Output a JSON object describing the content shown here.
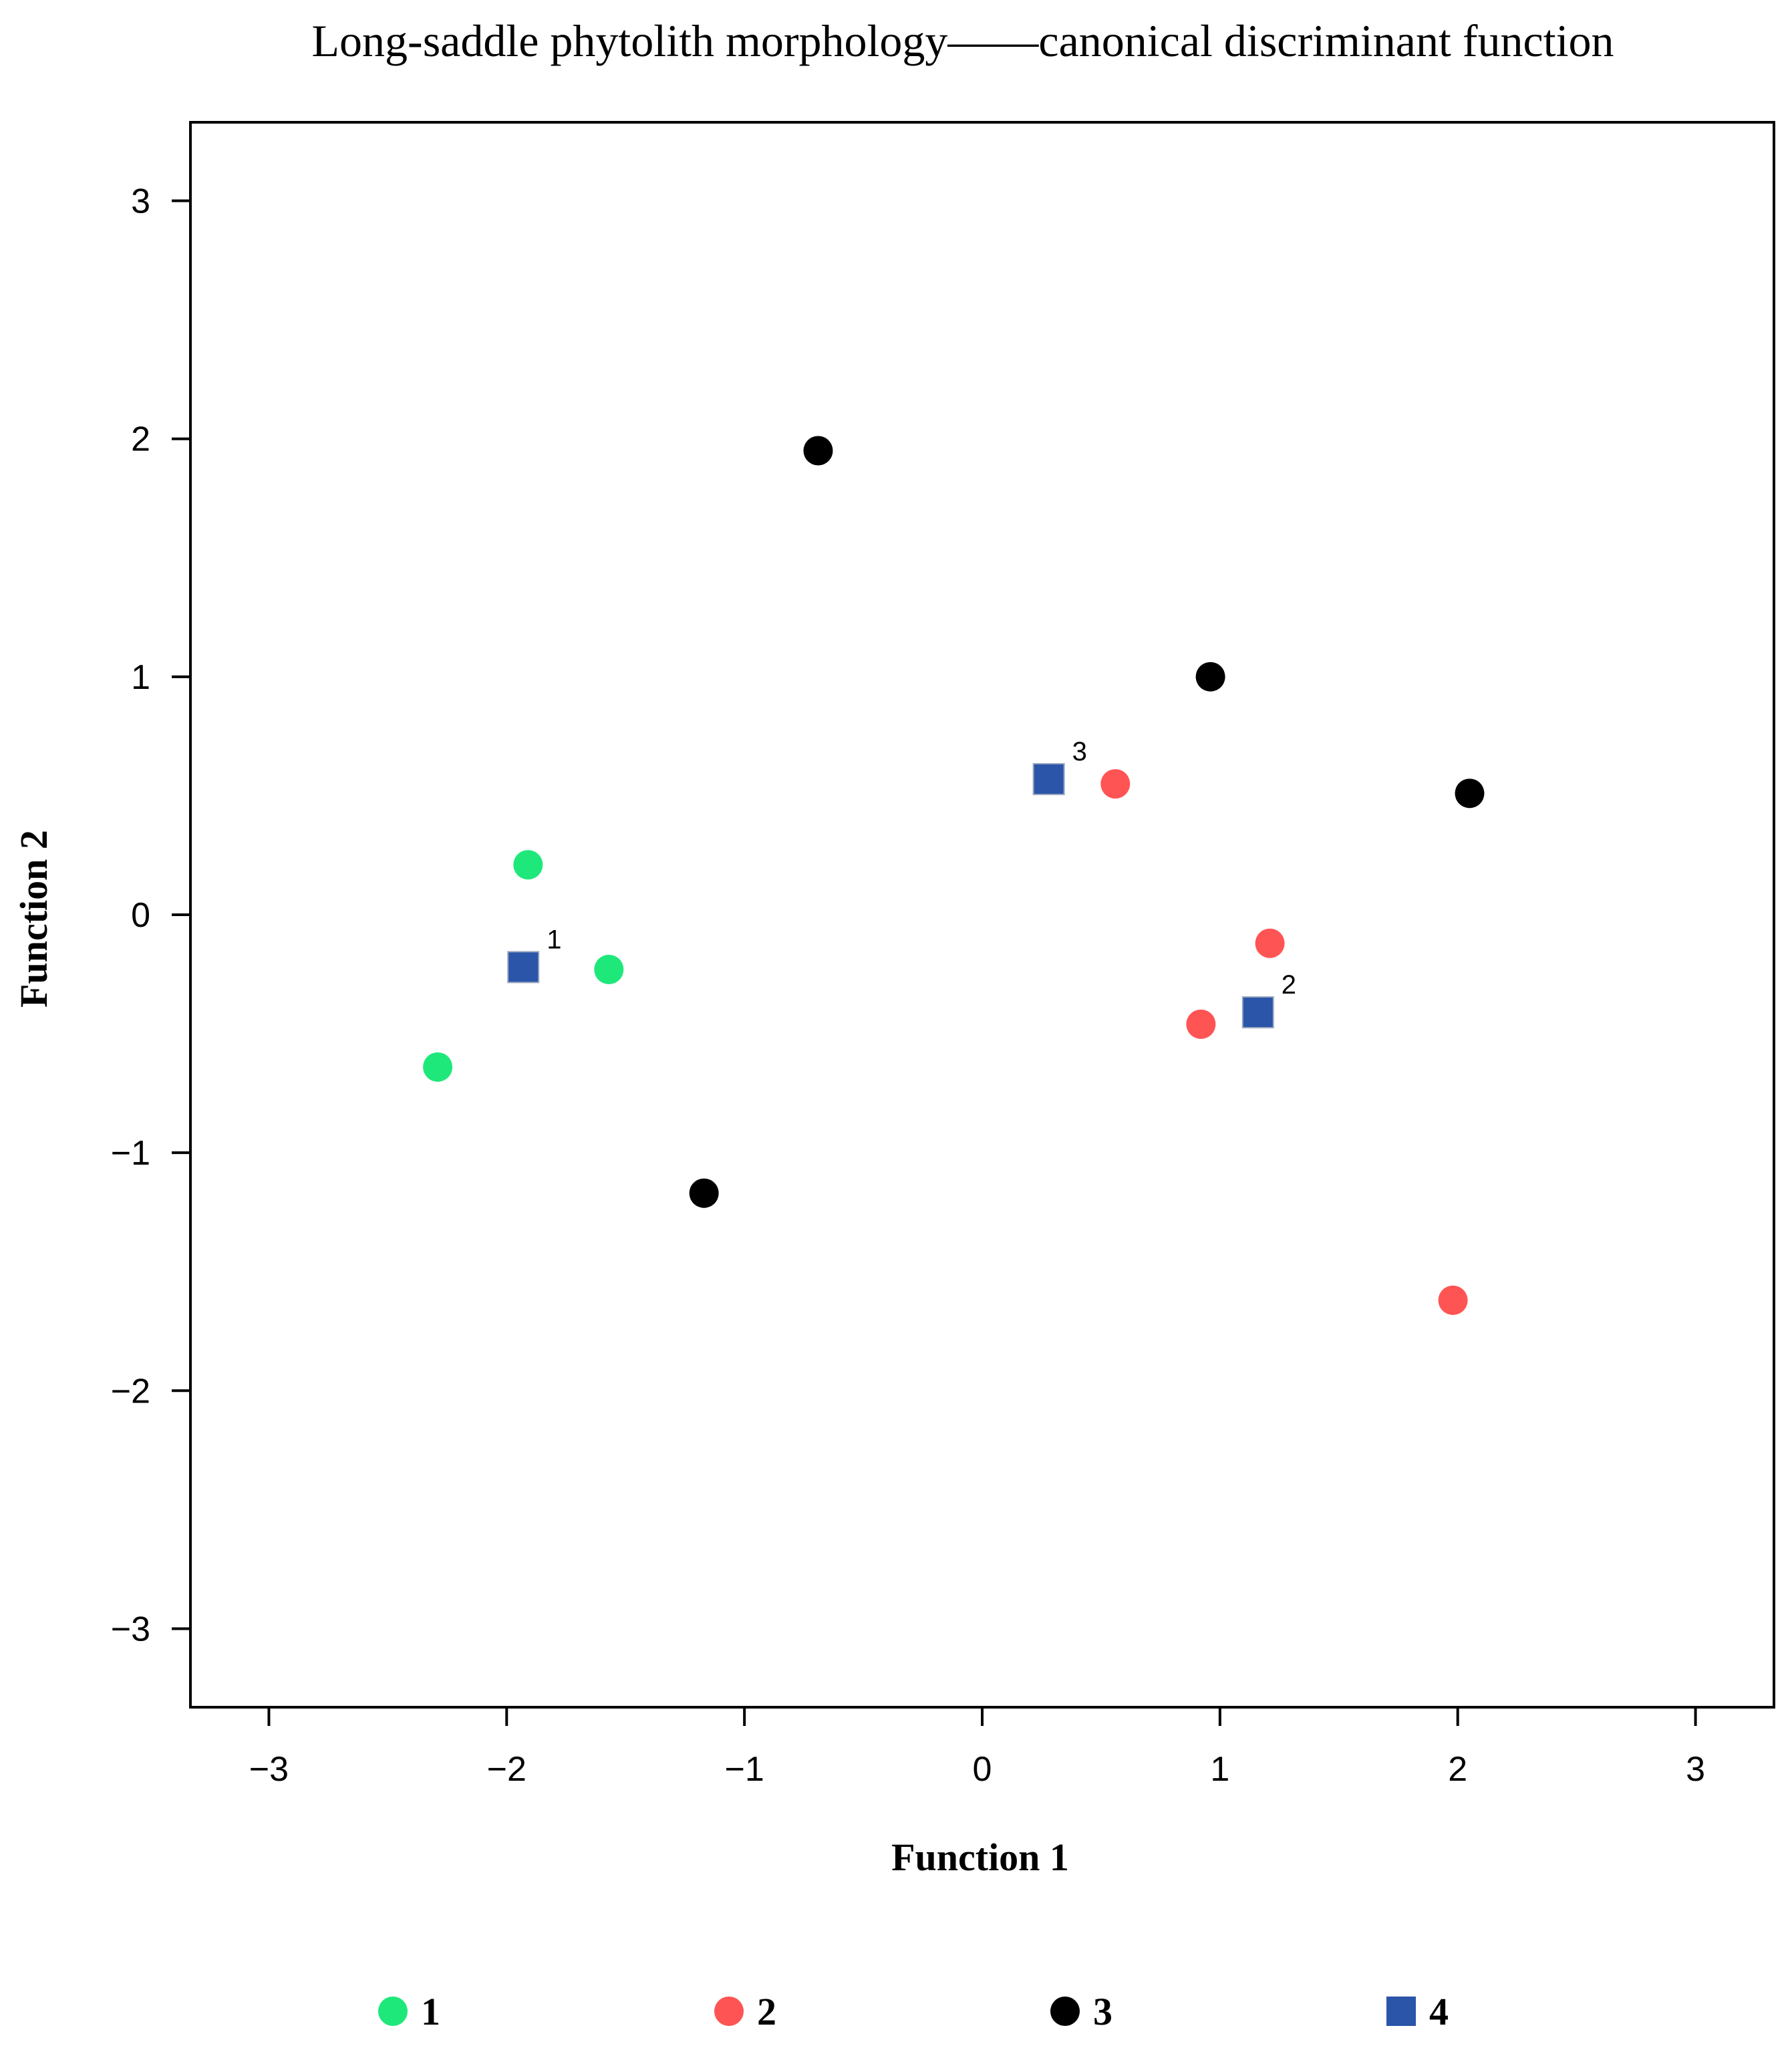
{
  "chart_data": {
    "type": "scatter",
    "title": "Long-saddle phytolith morphology——canonical discriminant function",
    "xlabel": "Function 1",
    "ylabel": "Function 2",
    "xlim": [
      -3.33,
      3.33
    ],
    "ylim": [
      -3.33,
      3.33
    ],
    "xticks": [
      -3,
      -2,
      -1,
      0,
      1,
      2,
      3
    ],
    "yticks": [
      -3,
      -2,
      -1,
      0,
      1,
      2,
      3
    ],
    "xtick_labels": [
      "−3",
      "−2",
      "−1",
      "0",
      "1",
      "2",
      "3"
    ],
    "ytick_labels": [
      "−3",
      "−2",
      "−1",
      "0",
      "1",
      "2",
      "3"
    ],
    "grid": false,
    "legend_position": "bottom",
    "series": [
      {
        "name": "1",
        "marker": "circle",
        "color": "#1ee87a",
        "points": [
          {
            "x": -1.91,
            "y": 0.21
          },
          {
            "x": -1.57,
            "y": -0.23
          },
          {
            "x": -2.29,
            "y": -0.64
          }
        ]
      },
      {
        "name": "2",
        "marker": "circle",
        "color": "#ff5454",
        "points": [
          {
            "x": 0.56,
            "y": 0.55
          },
          {
            "x": 1.21,
            "y": -0.12
          },
          {
            "x": 0.92,
            "y": -0.46
          },
          {
            "x": 1.98,
            "y": -1.62
          }
        ]
      },
      {
        "name": "3",
        "marker": "circle",
        "color": "#000000",
        "points": [
          {
            "x": -0.69,
            "y": 1.95
          },
          {
            "x": 0.96,
            "y": 1.0
          },
          {
            "x": 2.05,
            "y": 0.51
          },
          {
            "x": -1.17,
            "y": -1.17
          }
        ]
      },
      {
        "name": "4",
        "marker": "square",
        "color": "#2a55a8",
        "points": [
          {
            "x": -1.93,
            "y": -0.22,
            "label": "1"
          },
          {
            "x": 1.16,
            "y": -0.41,
            "label": "2"
          },
          {
            "x": 0.28,
            "y": 0.57,
            "label": "3"
          }
        ]
      }
    ]
  }
}
